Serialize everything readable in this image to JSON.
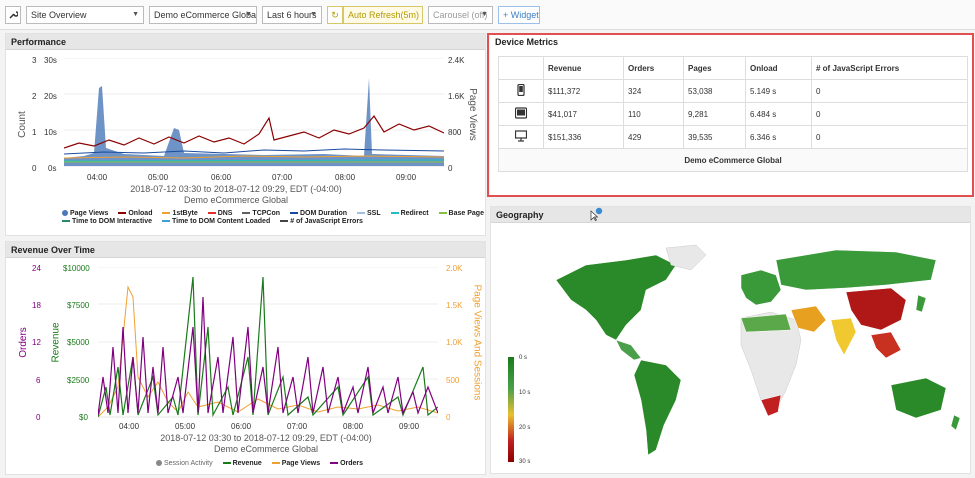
{
  "toolbar": {
    "site_select": "Site Overview",
    "domain_select": "Demo eCommerce Global",
    "range_button": "Last 6 hours",
    "auto_refresh": "Auto Refresh(5m)",
    "carousel": "Carousel (off)",
    "widget": "+ Widget"
  },
  "performance": {
    "title": "Performance",
    "y_left_ticks": [
      "3",
      "2",
      "1",
      "0"
    ],
    "y_left_time_ticks": [
      "30s",
      "20s",
      "10s",
      "0s"
    ],
    "y_right_ticks": [
      "2.4K",
      "1.6K",
      "800",
      "0"
    ],
    "ylabel_left": "Count",
    "ylabel_right": "Page Views",
    "x_ticks": [
      "04:00",
      "05:00",
      "06:00",
      "07:00",
      "08:00",
      "09:00"
    ],
    "caption_range": "2018-07-12 03:30 to 2018-07-12 09:29, EDT (-04:00)",
    "caption_site": "Demo eCommerce Global",
    "legend": [
      "Page Views",
      "Onload",
      "1stByte",
      "DNS",
      "TCPCon",
      "DOM Duration",
      "SSL",
      "Redirect",
      "Base Page",
      "Time to DOM Interactive",
      "Time to DOM Content Loaded",
      "# of JavaScript Errors"
    ]
  },
  "revenue": {
    "title": "Revenue Over Time",
    "y_orders_ticks": [
      "24",
      "18",
      "12",
      "6",
      "0"
    ],
    "y_revenue_ticks": [
      "$10000",
      "$7500",
      "$5000",
      "$2500",
      "$0"
    ],
    "y_right_ticks": [
      "2.0K",
      "1.5K",
      "1.0K",
      "500",
      "0"
    ],
    "ylabel_orders": "Orders",
    "ylabel_revenue": "Revenue",
    "ylabel_right": "Page Views And Sessions",
    "x_ticks": [
      "04:00",
      "05:00",
      "06:00",
      "07:00",
      "08:00",
      "09:00"
    ],
    "caption_range": "2018-07-12 03:30 to 2018-07-12 09:29, EDT (-04:00)",
    "caption_site": "Demo eCommerce Global",
    "legend": [
      "Session Activity",
      "Revenue",
      "Page Views",
      "Orders"
    ]
  },
  "device_metrics": {
    "title": "Device Metrics",
    "columns": [
      "Revenue",
      "Orders",
      "Pages",
      "Onload",
      "# of JavaScript Errors"
    ],
    "rows": [
      {
        "icon": "phone-icon",
        "revenue": "$111,372",
        "orders": "324",
        "pages": "53,038",
        "onload": "5.149 s",
        "errors": "0"
      },
      {
        "icon": "tablet-icon",
        "revenue": "$41,017",
        "orders": "110",
        "pages": "9,281",
        "onload": "6.484 s",
        "errors": "0"
      },
      {
        "icon": "desktop-icon",
        "revenue": "$151,336",
        "orders": "429",
        "pages": "39,535",
        "onload": "6.346 s",
        "errors": "0"
      }
    ],
    "footer": "Demo eCommerce Global"
  },
  "geography": {
    "title": "Geography",
    "scale_ticks": [
      "0 s",
      "10 s",
      "20 s",
      "30 s"
    ]
  },
  "colors": {
    "accent": "#3a6fb0",
    "onload": "#8b0000",
    "orders": "#800080",
    "revenue": "#1a7a1a",
    "pageviews_orange": "#f0a030",
    "highlight": "#e05050"
  }
}
